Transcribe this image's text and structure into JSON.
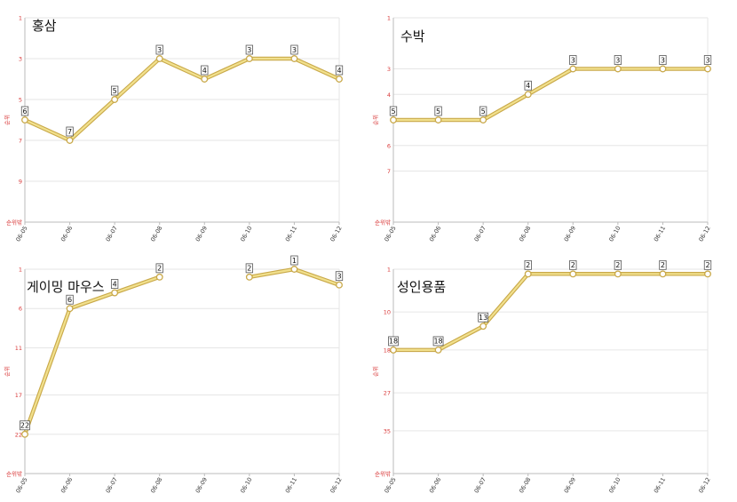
{
  "chart_data": [
    {
      "type": "line",
      "title": "홍삼",
      "ylabel": "순위",
      "y_tick_labels": [
        "1",
        "3",
        "5",
        "7",
        "9",
        "순위밖"
      ],
      "ylim": [
        1,
        11
      ],
      "y_inverted": true,
      "x": [
        "06-05",
        "06-06",
        "06-07",
        "06-08",
        "06-09",
        "06-10",
        "06-11",
        "06-12"
      ],
      "values": [
        6,
        7,
        5,
        3,
        4,
        3,
        3,
        4
      ],
      "data_labels": [
        "6",
        "7",
        "5",
        "3",
        "4",
        "3",
        "3",
        "4"
      ]
    },
    {
      "type": "line",
      "title": "수박",
      "ylabel": "순위",
      "y_tick_labels": [
        "1",
        "3",
        "4",
        "6",
        "7",
        "순위밖"
      ],
      "y_tick_values": [
        1,
        3,
        4,
        6,
        7,
        9
      ],
      "ylim": [
        1,
        9
      ],
      "y_inverted": true,
      "x": [
        "06-05",
        "06-06",
        "06-07",
        "06-08",
        "06-09",
        "06-10",
        "06-11",
        "06-12"
      ],
      "values": [
        5,
        5,
        5,
        4,
        3,
        3,
        3,
        3
      ],
      "data_labels": [
        "5",
        "5",
        "5",
        "4",
        "3",
        "3",
        "3",
        "3"
      ]
    },
    {
      "type": "line",
      "title": "게이밍 마우스",
      "ylabel": "순위",
      "y_tick_labels": [
        "1",
        "6",
        "11",
        "17",
        "22",
        "순위밖"
      ],
      "ylim": [
        1,
        27
      ],
      "y_inverted": true,
      "x": [
        "06-05",
        "06-06",
        "06-07",
        "06-08",
        "06-09",
        "06-10",
        "06-11",
        "06-12"
      ],
      "values": [
        22,
        6,
        4,
        2,
        null,
        2,
        1,
        3
      ],
      "data_labels": [
        "22",
        "6",
        "4",
        "2",
        "",
        "2",
        "1",
        "3"
      ]
    },
    {
      "type": "line",
      "title": "성인용품",
      "ylabel": "순위",
      "y_tick_labels": [
        "1",
        "10",
        "18",
        "27",
        "35",
        "순위밖"
      ],
      "ylim": [
        1,
        44
      ],
      "y_inverted": true,
      "x": [
        "06-05",
        "06-06",
        "06-07",
        "06-08",
        "06-09",
        "06-10",
        "06-11",
        "06-12"
      ],
      "values": [
        18,
        18,
        13,
        2,
        2,
        2,
        2,
        2
      ],
      "data_labels": [
        "18",
        "18",
        "13",
        "2",
        "2",
        "2",
        "2",
        "2"
      ]
    }
  ]
}
